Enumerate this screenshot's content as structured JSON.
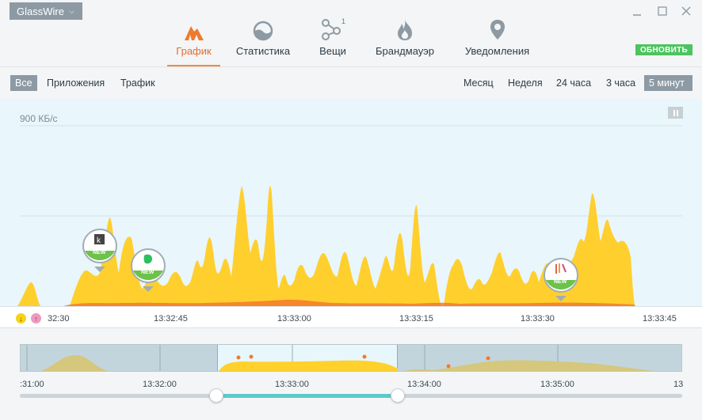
{
  "app": {
    "menu_label": "GlassWire",
    "chevron_icon": "chevron-down-icon"
  },
  "window_controls": {
    "minimize": "—",
    "maximize": "☐",
    "close": "✕"
  },
  "nav": {
    "tabs": [
      {
        "label": "График",
        "icon": "graph-icon",
        "active": true
      },
      {
        "label": "Статистика",
        "icon": "stats-icon",
        "active": false
      },
      {
        "label": "Вещи",
        "icon": "things-icon",
        "badge": "1",
        "active": false
      },
      {
        "label": "Брандмауэр",
        "icon": "firewall-icon",
        "active": false
      },
      {
        "label": "Уведомления",
        "icon": "alerts-icon",
        "active": false
      }
    ],
    "update_label": "ОБНОВИТЬ"
  },
  "filters": {
    "left": [
      "Все",
      "Приложения",
      "Трафик"
    ],
    "left_active": "Все",
    "right": [
      "Месяц",
      "Неделя",
      "24 часа",
      "3 часа",
      "5 минут"
    ],
    "right_active": "5 минут"
  },
  "graph": {
    "scale_label": "900 КБ/с",
    "pins": [
      {
        "label": "NEW",
        "icon": "kindle-app-icon"
      },
      {
        "label": "NEW",
        "icon": "evernote-app-icon"
      },
      {
        "label": "NEW",
        "icon": "app-icon"
      }
    ],
    "colors": {
      "download": "#ffcf2e",
      "upload": "#f47a2a",
      "background": "#e9f6fb"
    }
  },
  "time_axis": {
    "ticks": [
      "32:30",
      "13:32:45",
      "13:33:00",
      "13:33:15",
      "13:33:30",
      "13:33:45"
    ]
  },
  "mini_timeline": {
    "ticks": [
      ":31:00",
      "13:32:00",
      "13:33:00",
      "13:34:00",
      "13:35:00",
      "13"
    ]
  }
}
